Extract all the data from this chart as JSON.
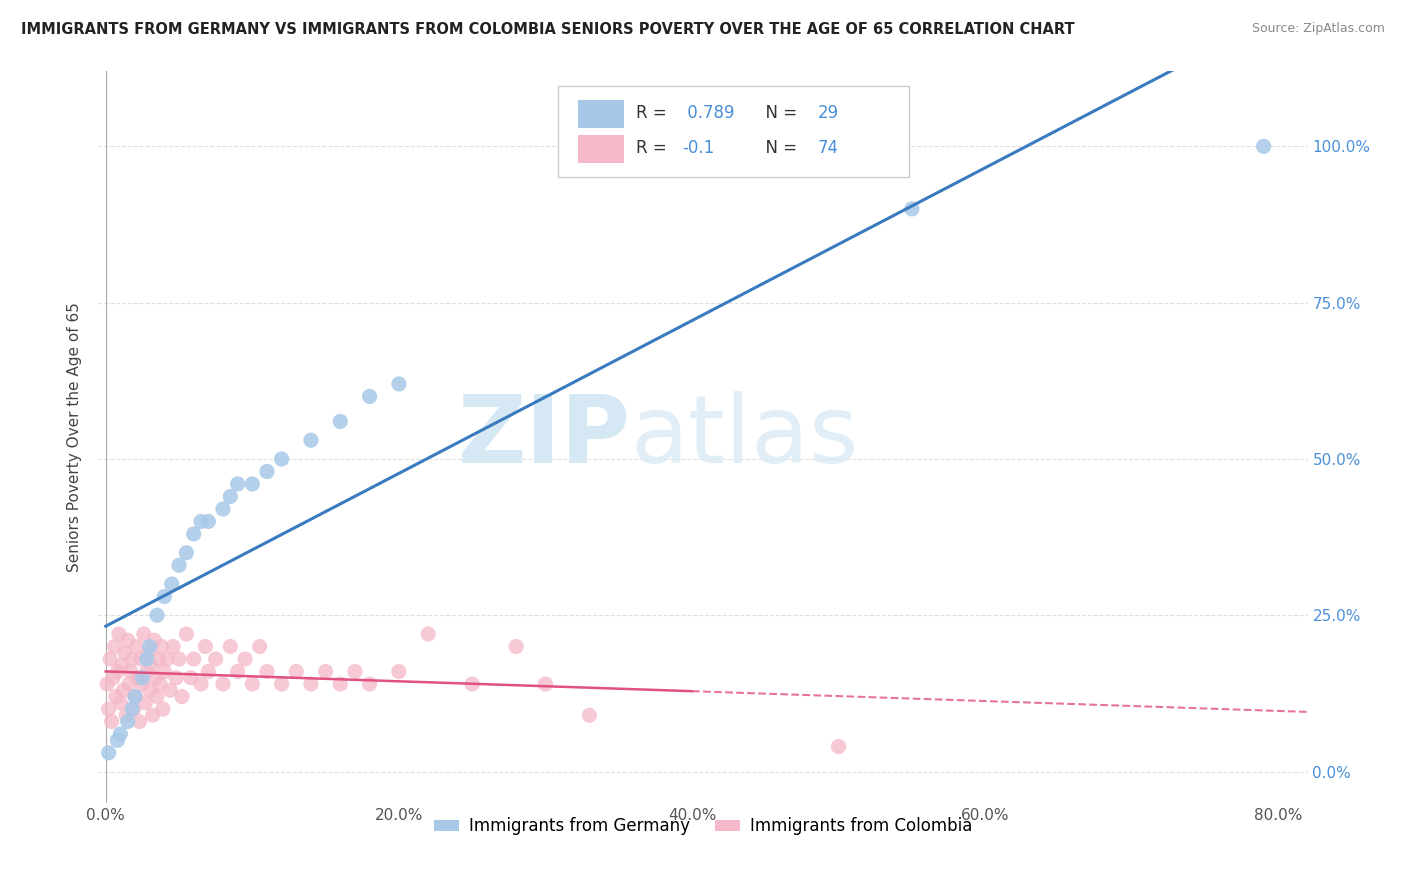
{
  "title": "IMMIGRANTS FROM GERMANY VS IMMIGRANTS FROM COLOMBIA SENIORS POVERTY OVER THE AGE OF 65 CORRELATION CHART",
  "source": "Source: ZipAtlas.com",
  "ylabel": "Seniors Poverty Over the Age of 65",
  "watermark_zip": "ZIP",
  "watermark_atlas": "atlas",
  "germany_color": "#a8c8e8",
  "colombia_color": "#f4b8c8",
  "germany_line_color": "#3a7abf",
  "colombia_line_color": "#e05080",
  "germany_R": 0.789,
  "germany_N": 29,
  "colombia_R": -0.1,
  "colombia_N": 74,
  "xlim": [
    -0.005,
    0.82
  ],
  "ylim": [
    -0.05,
    1.12
  ],
  "x_ticks": [
    0.0,
    0.2,
    0.4,
    0.6,
    0.8
  ],
  "x_tick_labels": [
    "0.0%",
    "20.0%",
    "40.0%",
    "60.0%",
    "80.0%"
  ],
  "y_ticks": [
    0.0,
    0.25,
    0.5,
    0.75,
    1.0
  ],
  "y_tick_labels": [
    "0.0%",
    "25.0%",
    "50.0%",
    "75.0%",
    "100.0%"
  ],
  "germany_scatter_x": [
    0.002,
    0.008,
    0.01,
    0.015,
    0.018,
    0.02,
    0.025,
    0.028,
    0.03,
    0.035,
    0.04,
    0.045,
    0.05,
    0.055,
    0.06,
    0.065,
    0.07,
    0.08,
    0.085,
    0.09,
    0.1,
    0.11,
    0.12,
    0.14,
    0.16,
    0.18,
    0.2,
    0.55,
    0.79
  ],
  "germany_scatter_y": [
    0.03,
    0.05,
    0.06,
    0.08,
    0.1,
    0.12,
    0.15,
    0.18,
    0.2,
    0.25,
    0.28,
    0.3,
    0.33,
    0.35,
    0.38,
    0.4,
    0.4,
    0.42,
    0.44,
    0.46,
    0.46,
    0.48,
    0.5,
    0.53,
    0.56,
    0.6,
    0.62,
    0.9,
    1.0
  ],
  "colombia_scatter_x": [
    0.001,
    0.002,
    0.003,
    0.004,
    0.005,
    0.006,
    0.007,
    0.008,
    0.009,
    0.01,
    0.011,
    0.012,
    0.013,
    0.014,
    0.015,
    0.016,
    0.017,
    0.018,
    0.019,
    0.02,
    0.021,
    0.022,
    0.023,
    0.024,
    0.025,
    0.026,
    0.027,
    0.028,
    0.029,
    0.03,
    0.031,
    0.032,
    0.033,
    0.034,
    0.035,
    0.036,
    0.037,
    0.038,
    0.039,
    0.04,
    0.042,
    0.044,
    0.046,
    0.048,
    0.05,
    0.052,
    0.055,
    0.058,
    0.06,
    0.065,
    0.068,
    0.07,
    0.075,
    0.08,
    0.085,
    0.09,
    0.095,
    0.1,
    0.105,
    0.11,
    0.12,
    0.13,
    0.14,
    0.15,
    0.16,
    0.17,
    0.18,
    0.2,
    0.22,
    0.25,
    0.28,
    0.3,
    0.33,
    0.5
  ],
  "colombia_scatter_y": [
    0.14,
    0.1,
    0.18,
    0.08,
    0.15,
    0.2,
    0.12,
    0.16,
    0.22,
    0.11,
    0.17,
    0.13,
    0.19,
    0.09,
    0.21,
    0.14,
    0.16,
    0.18,
    0.1,
    0.12,
    0.2,
    0.15,
    0.08,
    0.18,
    0.14,
    0.22,
    0.11,
    0.16,
    0.19,
    0.13,
    0.17,
    0.09,
    0.21,
    0.15,
    0.12,
    0.18,
    0.14,
    0.2,
    0.1,
    0.16,
    0.18,
    0.13,
    0.2,
    0.15,
    0.18,
    0.12,
    0.22,
    0.15,
    0.18,
    0.14,
    0.2,
    0.16,
    0.18,
    0.14,
    0.2,
    0.16,
    0.18,
    0.14,
    0.2,
    0.16,
    0.14,
    0.16,
    0.14,
    0.16,
    0.14,
    0.16,
    0.14,
    0.16,
    0.22,
    0.14,
    0.2,
    0.14,
    0.09,
    0.04
  ],
  "background_color": "#ffffff",
  "grid_color": "#dddddd"
}
